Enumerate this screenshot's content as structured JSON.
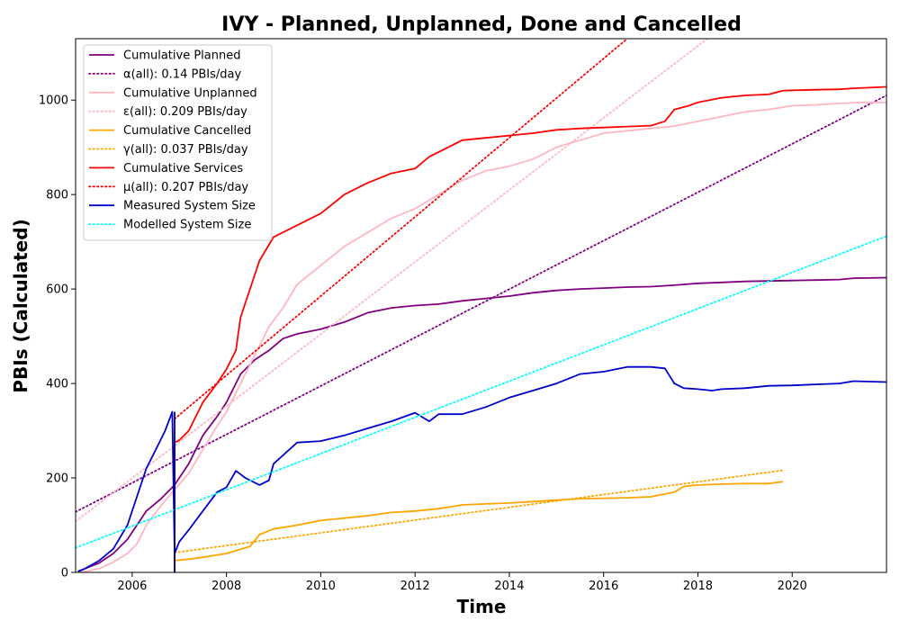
{
  "chart_data": {
    "type": "line",
    "title": "IVY - Planned, Unplanned, Done  and Cancelled",
    "xlabel": "Time",
    "ylabel": "PBIs (Calculated)",
    "xlim": [
      2004.8,
      2022.0
    ],
    "ylim": [
      0,
      1130
    ],
    "xticks": [
      2006,
      2008,
      2010,
      2012,
      2014,
      2016,
      2018,
      2020
    ],
    "yticks": [
      0,
      200,
      400,
      600,
      800,
      1000
    ],
    "grid": false,
    "legend_position": "top-left",
    "event_line_x": 2006.9,
    "series": [
      {
        "name": "Cumulative Planned",
        "color": "#800080",
        "style": "solid",
        "points": [
          [
            2004.85,
            2
          ],
          [
            2005.0,
            8
          ],
          [
            2005.3,
            20
          ],
          [
            2005.6,
            40
          ],
          [
            2005.9,
            70
          ],
          [
            2006.1,
            100
          ],
          [
            2006.3,
            130
          ],
          [
            2006.6,
            155
          ],
          [
            2006.9,
            185
          ],
          [
            2007.2,
            230
          ],
          [
            2007.5,
            290
          ],
          [
            2007.8,
            330
          ],
          [
            2008.0,
            360
          ],
          [
            2008.3,
            420
          ],
          [
            2008.6,
            450
          ],
          [
            2008.9,
            470
          ],
          [
            2009.2,
            495
          ],
          [
            2009.5,
            505
          ],
          [
            2010.0,
            515
          ],
          [
            2010.5,
            530
          ],
          [
            2011.0,
            550
          ],
          [
            2011.5,
            560
          ],
          [
            2012.0,
            565
          ],
          [
            2012.5,
            568
          ],
          [
            2013.0,
            575
          ],
          [
            2013.5,
            580
          ],
          [
            2014.0,
            585
          ],
          [
            2014.5,
            592
          ],
          [
            2015.0,
            597
          ],
          [
            2015.5,
            600
          ],
          [
            2016.0,
            602
          ],
          [
            2016.5,
            604
          ],
          [
            2017.0,
            605
          ],
          [
            2017.5,
            608
          ],
          [
            2018.0,
            612
          ],
          [
            2018.5,
            614
          ],
          [
            2019.0,
            616
          ],
          [
            2019.5,
            617
          ],
          [
            2020.0,
            618
          ],
          [
            2020.5,
            619
          ],
          [
            2021.0,
            620
          ],
          [
            2021.3,
            623
          ],
          [
            2022.0,
            624
          ]
        ]
      },
      {
        "name": "α(all): 0.14 PBIs/day",
        "color": "#800080",
        "style": "dotted",
        "points": [
          [
            2004.8,
            128
          ],
          [
            2022.0,
            1010
          ]
        ]
      },
      {
        "name": "Cumulative Unplanned",
        "color": "#ffb6c1",
        "style": "solid",
        "points": [
          [
            2004.85,
            0
          ],
          [
            2005.0,
            2
          ],
          [
            2005.3,
            8
          ],
          [
            2005.6,
            22
          ],
          [
            2005.9,
            40
          ],
          [
            2006.1,
            60
          ],
          [
            2006.3,
            100
          ],
          [
            2006.6,
            140
          ],
          [
            2006.9,
            175
          ],
          [
            2007.2,
            210
          ],
          [
            2007.5,
            260
          ],
          [
            2007.8,
            310
          ],
          [
            2008.0,
            340
          ],
          [
            2008.3,
            400
          ],
          [
            2008.6,
            460
          ],
          [
            2008.9,
            520
          ],
          [
            2009.2,
            560
          ],
          [
            2009.5,
            610
          ],
          [
            2010.0,
            650
          ],
          [
            2010.5,
            690
          ],
          [
            2011.0,
            720
          ],
          [
            2011.5,
            750
          ],
          [
            2012.0,
            770
          ],
          [
            2012.5,
            800
          ],
          [
            2013.0,
            830
          ],
          [
            2013.5,
            850
          ],
          [
            2014.0,
            860
          ],
          [
            2014.5,
            875
          ],
          [
            2015.0,
            900
          ],
          [
            2015.5,
            915
          ],
          [
            2016.0,
            930
          ],
          [
            2016.5,
            935
          ],
          [
            2017.0,
            940
          ],
          [
            2017.5,
            945
          ],
          [
            2018.0,
            955
          ],
          [
            2018.5,
            965
          ],
          [
            2019.0,
            975
          ],
          [
            2019.5,
            980
          ],
          [
            2020.0,
            988
          ],
          [
            2020.5,
            990
          ],
          [
            2021.0,
            993
          ],
          [
            2021.5,
            995
          ],
          [
            2022.0,
            995
          ]
        ]
      },
      {
        "name": "ε(all): 0.209 PBIs/day",
        "color": "#ffb6c1",
        "style": "dotted",
        "points": [
          [
            2004.8,
            108
          ],
          [
            2018.2,
            1130
          ]
        ]
      },
      {
        "name": "Cumulative Cancelled",
        "color": "#ffa500",
        "style": "solid",
        "points": [
          [
            2006.9,
            25
          ],
          [
            2007.2,
            28
          ],
          [
            2007.5,
            32
          ],
          [
            2008.0,
            40
          ],
          [
            2008.5,
            55
          ],
          [
            2008.7,
            80
          ],
          [
            2009.0,
            92
          ],
          [
            2009.5,
            100
          ],
          [
            2010.0,
            110
          ],
          [
            2010.5,
            115
          ],
          [
            2011.0,
            120
          ],
          [
            2011.5,
            127
          ],
          [
            2012.0,
            130
          ],
          [
            2012.5,
            135
          ],
          [
            2013.0,
            143
          ],
          [
            2013.5,
            145
          ],
          [
            2014.0,
            147
          ],
          [
            2014.5,
            150
          ],
          [
            2015.0,
            153
          ],
          [
            2015.5,
            156
          ],
          [
            2016.0,
            157
          ],
          [
            2016.5,
            158
          ],
          [
            2017.0,
            160
          ],
          [
            2017.5,
            170
          ],
          [
            2017.7,
            182
          ],
          [
            2018.0,
            185
          ],
          [
            2018.5,
            187
          ],
          [
            2019.0,
            188
          ],
          [
            2019.5,
            188
          ],
          [
            2019.8,
            192
          ]
        ]
      },
      {
        "name": "γ(all): 0.037 PBIs/day",
        "color": "#ffa500",
        "style": "dotted",
        "points": [
          [
            2006.9,
            42
          ],
          [
            2019.8,
            216
          ]
        ]
      },
      {
        "name": "Cumulative Services",
        "color": "#ff0000",
        "style": "solid",
        "points": [
          [
            2006.9,
            0
          ],
          [
            2006.9,
            275
          ],
          [
            2007.0,
            280
          ],
          [
            2007.2,
            300
          ],
          [
            2007.5,
            360
          ],
          [
            2007.8,
            400
          ],
          [
            2008.0,
            430
          ],
          [
            2008.2,
            470
          ],
          [
            2008.3,
            540
          ],
          [
            2008.5,
            600
          ],
          [
            2008.7,
            660
          ],
          [
            2009.0,
            710
          ],
          [
            2009.5,
            735
          ],
          [
            2010.0,
            760
          ],
          [
            2010.5,
            800
          ],
          [
            2011.0,
            825
          ],
          [
            2011.5,
            845
          ],
          [
            2012.0,
            855
          ],
          [
            2012.3,
            880
          ],
          [
            2012.7,
            900
          ],
          [
            2013.0,
            915
          ],
          [
            2013.5,
            920
          ],
          [
            2014.0,
            925
          ],
          [
            2014.5,
            930
          ],
          [
            2015.0,
            937
          ],
          [
            2015.5,
            940
          ],
          [
            2016.0,
            942
          ],
          [
            2016.5,
            944
          ],
          [
            2017.0,
            946
          ],
          [
            2017.3,
            955
          ],
          [
            2017.5,
            980
          ],
          [
            2017.8,
            988
          ],
          [
            2018.0,
            995
          ],
          [
            2018.5,
            1005
          ],
          [
            2019.0,
            1010
          ],
          [
            2019.5,
            1012
          ],
          [
            2019.8,
            1020
          ],
          [
            2020.5,
            1022
          ],
          [
            2021.0,
            1023
          ],
          [
            2021.3,
            1025
          ],
          [
            2022.0,
            1028
          ]
        ]
      },
      {
        "name": "μ(all): 0.207 PBIs/day",
        "color": "#ff0000",
        "style": "dotted",
        "points": [
          [
            2006.9,
            325
          ],
          [
            2016.5,
            1130
          ]
        ]
      },
      {
        "name": "Measured System Size",
        "color": "#0000cd",
        "style": "solid",
        "points": [
          [
            2004.85,
            2
          ],
          [
            2005.0,
            8
          ],
          [
            2005.3,
            25
          ],
          [
            2005.6,
            50
          ],
          [
            2005.9,
            100
          ],
          [
            2006.1,
            160
          ],
          [
            2006.3,
            220
          ],
          [
            2006.5,
            260
          ],
          [
            2006.7,
            300
          ],
          [
            2006.85,
            340
          ],
          [
            2006.9,
            40
          ],
          [
            2007.0,
            65
          ],
          [
            2007.2,
            90
          ],
          [
            2007.5,
            130
          ],
          [
            2007.8,
            170
          ],
          [
            2008.0,
            180
          ],
          [
            2008.2,
            215
          ],
          [
            2008.4,
            200
          ],
          [
            2008.7,
            185
          ],
          [
            2008.9,
            195
          ],
          [
            2009.0,
            230
          ],
          [
            2009.5,
            275
          ],
          [
            2010.0,
            278
          ],
          [
            2010.5,
            290
          ],
          [
            2011.0,
            305
          ],
          [
            2011.5,
            320
          ],
          [
            2012.0,
            338
          ],
          [
            2012.3,
            320
          ],
          [
            2012.5,
            335
          ],
          [
            2013.0,
            335
          ],
          [
            2013.5,
            350
          ],
          [
            2014.0,
            370
          ],
          [
            2014.5,
            385
          ],
          [
            2015.0,
            400
          ],
          [
            2015.5,
            420
          ],
          [
            2016.0,
            425
          ],
          [
            2016.5,
            435
          ],
          [
            2017.0,
            435
          ],
          [
            2017.3,
            432
          ],
          [
            2017.5,
            400
          ],
          [
            2017.7,
            390
          ],
          [
            2018.0,
            388
          ],
          [
            2018.3,
            385
          ],
          [
            2018.5,
            388
          ],
          [
            2019.0,
            390
          ],
          [
            2019.5,
            395
          ],
          [
            2020.0,
            396
          ],
          [
            2020.5,
            398
          ],
          [
            2021.0,
            400
          ],
          [
            2021.3,
            405
          ],
          [
            2022.0,
            403
          ]
        ]
      },
      {
        "name": "Modelled System Size",
        "color": "#00ffff",
        "style": "dotted",
        "points": [
          [
            2004.8,
            52
          ],
          [
            2022.0,
            712
          ]
        ]
      }
    ]
  }
}
